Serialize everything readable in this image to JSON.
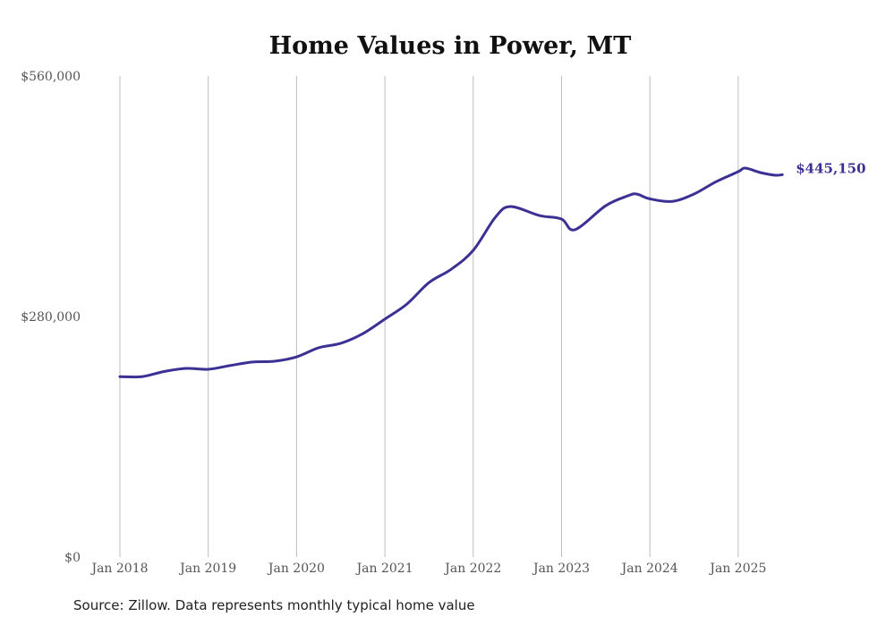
{
  "chart_data": {
    "type": "line",
    "title": "Home Values in Power, MT",
    "xlabel": "",
    "ylabel": "",
    "ylim": [
      0,
      560000
    ],
    "y_ticks": [
      0,
      280000,
      560000
    ],
    "y_tick_labels": [
      "$0",
      "$280,000",
      "$560,000"
    ],
    "x_ticks": [
      2018,
      2019,
      2020,
      2021,
      2022,
      2023,
      2024,
      2025
    ],
    "x_tick_labels": [
      "Jan 2018",
      "Jan 2019",
      "Jan 2020",
      "Jan 2021",
      "Jan 2022",
      "Jan 2023",
      "Jan 2024",
      "Jan 2025"
    ],
    "grid": "vertical",
    "series": [
      {
        "name": "Typical home value",
        "color": "#3b3195",
        "x": [
          2018.0,
          2018.25,
          2018.5,
          2018.75,
          2019.0,
          2019.25,
          2019.5,
          2019.75,
          2020.0,
          2020.25,
          2020.5,
          2020.75,
          2021.0,
          2021.25,
          2021.5,
          2021.75,
          2022.0,
          2022.25,
          2022.42,
          2022.75,
          2023.0,
          2023.15,
          2023.5,
          2023.75,
          2023.85,
          2024.0,
          2024.25,
          2024.5,
          2024.75,
          2025.0,
          2025.08,
          2025.25,
          2025.42,
          2025.5
        ],
        "values": [
          210000,
          210000,
          216000,
          219600,
          218600,
          223000,
          227000,
          228000,
          233000,
          243600,
          248800,
          260000,
          277000,
          294600,
          319600,
          335000,
          357000,
          395500,
          408000,
          397600,
          393500,
          381000,
          409000,
          420500,
          422600,
          417000,
          414000,
          422600,
          437000,
          448600,
          452800,
          447600,
          444500,
          445150
        ]
      }
    ],
    "end_label": "$445,150"
  },
  "source": "Source: Zillow. Data represents monthly typical home value"
}
